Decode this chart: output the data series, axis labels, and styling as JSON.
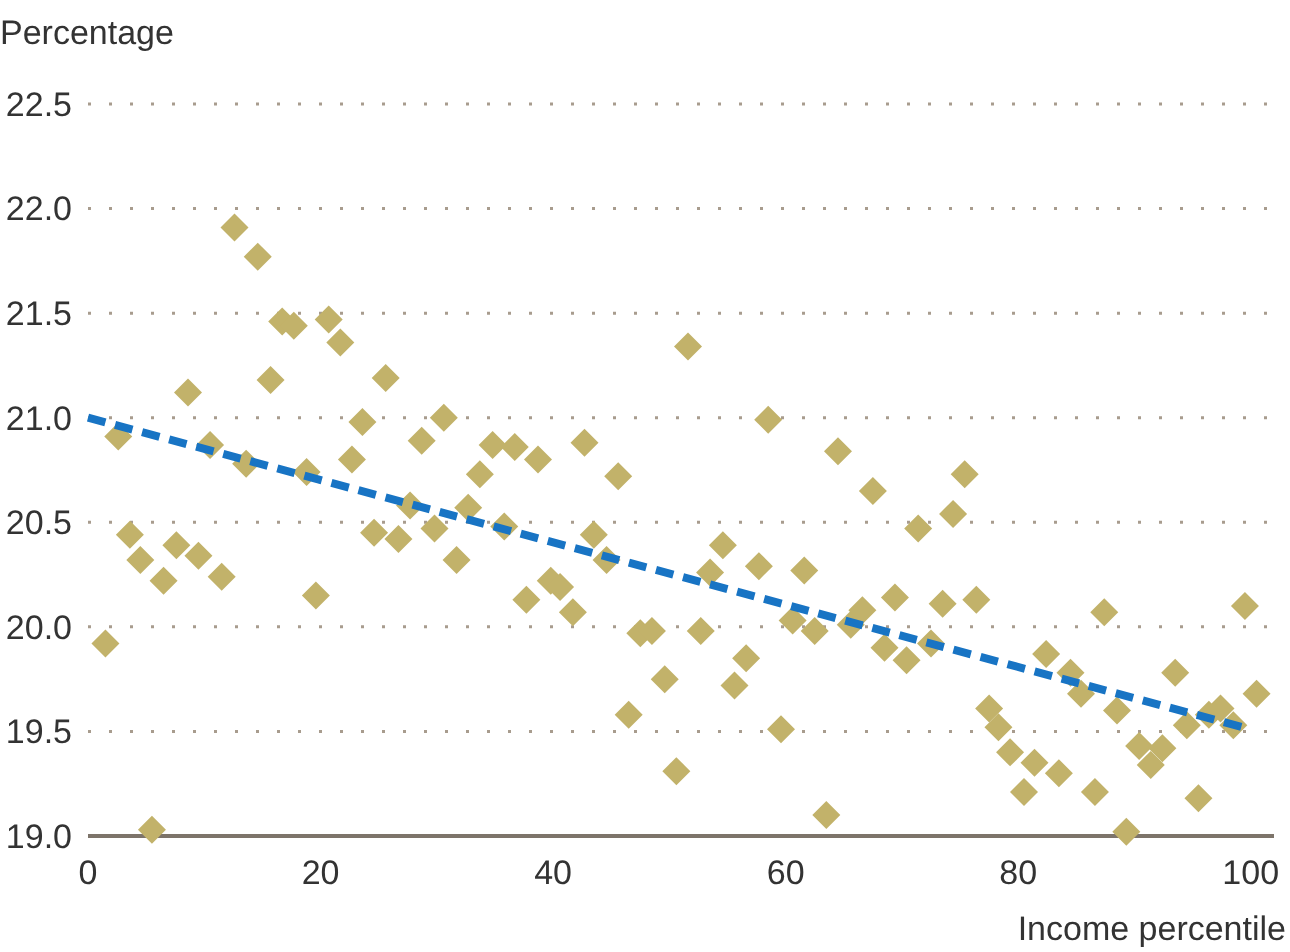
{
  "chart_data": {
    "type": "scatter",
    "ylabel": "Percentage",
    "xlabel": "Income percentile",
    "xlim": [
      0,
      102
    ],
    "ylim": [
      19.0,
      22.5
    ],
    "xticks": [
      0,
      20,
      40,
      60,
      80,
      100
    ],
    "yticks": [
      {
        "value": 19.0,
        "label": "19.0"
      },
      {
        "value": 19.5,
        "label": "19.5"
      },
      {
        "value": 20.0,
        "label": "20.0"
      },
      {
        "value": 20.5,
        "label": "20.5"
      },
      {
        "value": 21.0,
        "label": "21.0"
      },
      {
        "value": 21.5,
        "label": "21.5"
      },
      {
        "value": 22.0,
        "label": "22.0"
      },
      {
        "value": 22.5,
        "label": "22.5"
      }
    ],
    "grid": "y",
    "series": [
      {
        "color": "#c2b26a",
        "marker": "diamond",
        "x": [
          1.5,
          2.6,
          3.6,
          4.5,
          5.5,
          6.5,
          7.6,
          8.6,
          9.5,
          10.5,
          11.5,
          12.6,
          13.6,
          14.6,
          15.7,
          16.7,
          17.7,
          18.8,
          19.6,
          20.7,
          21.7,
          22.7,
          23.6,
          24.6,
          25.6,
          26.7,
          27.7,
          28.7,
          29.8,
          30.6,
          31.7,
          32.7,
          33.7,
          34.8,
          35.8,
          36.7,
          37.7,
          38.7,
          39.8,
          40.6,
          41.7,
          42.7,
          43.5,
          44.6,
          45.6,
          46.5,
          47.5,
          48.5,
          49.6,
          50.6,
          51.6,
          52.7,
          53.5,
          54.6,
          55.6,
          56.6,
          57.7,
          58.5,
          59.6,
          60.6,
          61.6,
          62.5,
          63.5,
          64.5,
          65.6,
          66.6,
          67.5,
          68.5,
          69.4,
          70.4,
          71.4,
          72.5,
          73.5,
          74.4,
          75.4,
          76.4,
          77.5,
          78.3,
          79.3,
          80.5,
          81.4,
          82.4,
          83.5,
          84.5,
          85.4,
          86.6,
          87.4,
          88.5,
          89.3,
          90.4,
          91.4,
          92.4,
          93.5,
          94.5,
          95.5,
          96.4,
          97.4,
          98.5,
          99.5,
          100.5
        ],
        "values": [
          19.92,
          20.91,
          20.44,
          20.32,
          19.03,
          20.22,
          20.39,
          21.12,
          20.34,
          20.87,
          20.24,
          21.91,
          20.78,
          21.77,
          21.18,
          21.46,
          21.44,
          20.74,
          20.15,
          21.47,
          21.36,
          20.8,
          20.98,
          20.45,
          21.19,
          20.42,
          20.58,
          20.89,
          20.47,
          21.0,
          20.32,
          20.57,
          20.73,
          20.87,
          20.48,
          20.86,
          20.13,
          20.8,
          20.22,
          20.19,
          20.07,
          20.88,
          20.44,
          20.32,
          20.72,
          19.58,
          19.97,
          19.98,
          19.75,
          19.31,
          21.34,
          19.98,
          20.26,
          20.39,
          19.72,
          19.85,
          20.29,
          20.99,
          19.51,
          20.03,
          20.27,
          19.98,
          19.1,
          20.84,
          20.01,
          20.08,
          20.65,
          19.9,
          20.14,
          19.84,
          20.47,
          19.92,
          20.11,
          20.54,
          20.73,
          20.13,
          19.61,
          19.52,
          19.4,
          19.21,
          19.35,
          19.87,
          19.3,
          19.78,
          19.68,
          19.21,
          20.07,
          19.6,
          19.02,
          19.43,
          19.34,
          19.42,
          19.78,
          19.53,
          19.18,
          19.58,
          19.61,
          19.53,
          20.1,
          19.68
        ]
      },
      {
        "type": "line",
        "color": "#1874c4",
        "line_style": "dashed",
        "marker": "none",
        "x": [
          0,
          100
        ],
        "values": [
          21.0,
          19.51
        ]
      }
    ]
  }
}
